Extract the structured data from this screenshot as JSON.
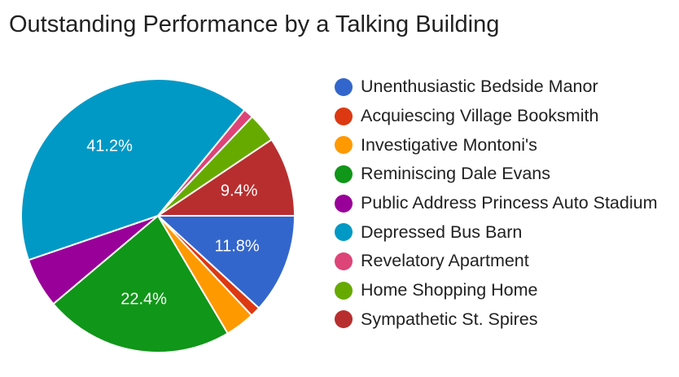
{
  "chart_data": {
    "type": "pie",
    "title": "Outstanding Performance by a Talking Building",
    "legend_position": "right",
    "slices": [
      {
        "label": "Unenthusiastic Bedside Manor",
        "value": 11.8,
        "color": "#3366cc",
        "data_label": "11.8%"
      },
      {
        "label": "Acquiescing Village Booksmith",
        "value": 1.2,
        "color": "#dc3912",
        "data_label": ""
      },
      {
        "label": "Investigative Montoni's",
        "value": 3.5,
        "color": "#ff9900",
        "data_label": ""
      },
      {
        "label": "Reminiscing Dale Evans",
        "value": 22.4,
        "color": "#109618",
        "data_label": "22.4%"
      },
      {
        "label": "Public Address Princess Auto Stadium",
        "value": 5.9,
        "color": "#990099",
        "data_label": ""
      },
      {
        "label": "Depressed Bus Barn",
        "value": 41.2,
        "color": "#0099c6",
        "data_label": "41.2%"
      },
      {
        "label": "Revelatory Apartment",
        "value": 1.2,
        "color": "#dd4477",
        "data_label": ""
      },
      {
        "label": "Home Shopping Home",
        "value": 3.5,
        "color": "#66aa00",
        "data_label": ""
      },
      {
        "label": "Sympathetic St. Spires",
        "value": 9.4,
        "color": "#b82e2e",
        "data_label": "9.4%"
      }
    ]
  }
}
